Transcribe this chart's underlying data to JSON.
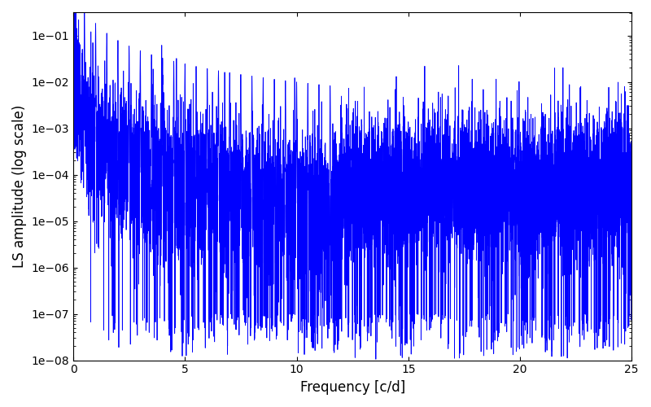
{
  "xlabel": "Frequency [c/d]",
  "ylabel": "LS amplitude (log scale)",
  "xlim": [
    0,
    25
  ],
  "ylim_log": [
    -8,
    -0.5
  ],
  "line_color": "#0000ff",
  "line_width": 0.6,
  "figsize": [
    8.0,
    5.0
  ],
  "dpi": 100,
  "freq_max": 25.0,
  "n_points": 10000,
  "seed": 7
}
